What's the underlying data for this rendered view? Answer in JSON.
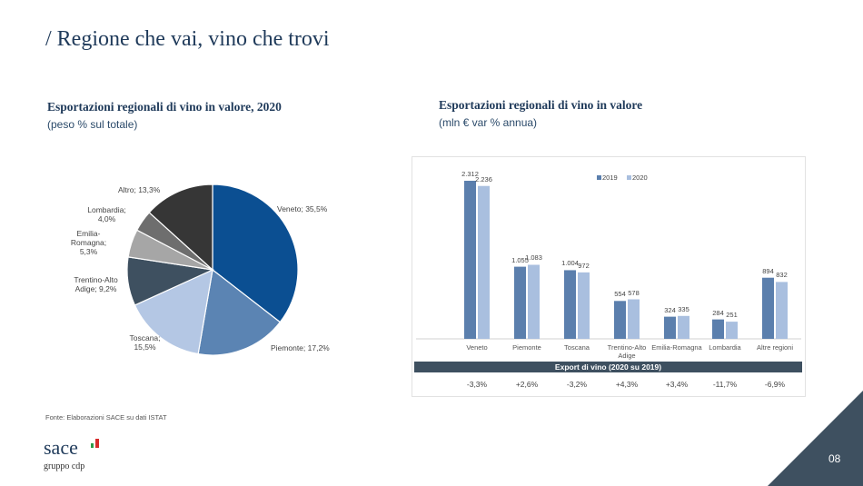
{
  "header": {
    "title": "/ Regione che vai, vino che trovi"
  },
  "pie_section": {
    "title": "Esportazioni regionali di vino in valore, 2020",
    "subtitle": "(peso % sul totale)"
  },
  "bar_section": {
    "title": "Esportazioni regionali di vino in valore",
    "subtitle": "(mln € var % annua)"
  },
  "chart_data": [
    {
      "type": "pie",
      "title": "Esportazioni regionali di vino in valore, 2020",
      "subtitle": "(peso % sul totale)",
      "slices": [
        {
          "label": "Veneto; 35,5%",
          "name": "Veneto",
          "value": 35.5,
          "color": "#0b4f92"
        },
        {
          "label": "Piemonte; 17,2%",
          "name": "Piemonte",
          "value": 17.2,
          "color": "#5b84b3"
        },
        {
          "label": "Toscana; 15,5%",
          "name": "Toscana",
          "value": 15.5,
          "color": "#b4c7e4"
        },
        {
          "label": "Trentino-Alto Adige; 9,2%",
          "name": "Trentino-Alto Adige",
          "value": 9.2,
          "color": "#3e5060"
        },
        {
          "label": "Emilia-Romagna; 5,3%",
          "name": "Emilia-Romagna",
          "value": 5.3,
          "color": "#a6a6a6"
        },
        {
          "label": "Lombardia; 4,0%",
          "name": "Lombardia",
          "value": 4.0,
          "color": "#6e6e6e"
        },
        {
          "label": "Altro; 13,3%",
          "name": "Altro",
          "value": 13.3,
          "color": "#363636"
        }
      ]
    },
    {
      "type": "bar",
      "title": "Esportazioni regionali di vino in valore",
      "subtitle": "(mln € var % annua)",
      "categories": [
        "Veneto",
        "Piemonte",
        "Toscana",
        "Trentino-Alto Adige",
        "Emilia-Romagna",
        "Lombardia",
        "Altre regioni"
      ],
      "series": [
        {
          "name": "2019",
          "color": "#5b7fad",
          "values": [
            2312,
            1055,
            1004,
            554,
            324,
            284,
            894
          ],
          "labels": [
            "2.312",
            "1.055",
            "1.004",
            "554",
            "324",
            "284",
            "894"
          ]
        },
        {
          "name": "2020",
          "color": "#a9bfdf",
          "values": [
            2236,
            1083,
            972,
            578,
            335,
            251,
            832
          ],
          "labels": [
            "2.236",
            "1.083",
            "972",
            "578",
            "335",
            "251",
            "832"
          ]
        }
      ],
      "legend": "top-center",
      "ylim": [
        0,
        2400
      ],
      "table_header": "Export di vino (2020 su 2019)",
      "changes": [
        "-3,3%",
        "+2,6%",
        "-3,2%",
        "+4,3%",
        "+3,4%",
        "-11,7%",
        "-6,9%"
      ]
    }
  ],
  "footer": {
    "source": "Fonte: Elaborazioni SACE su dati ISTAT",
    "logo_text": "sace",
    "logo_sub": "gruppo cdp",
    "page": "08"
  }
}
